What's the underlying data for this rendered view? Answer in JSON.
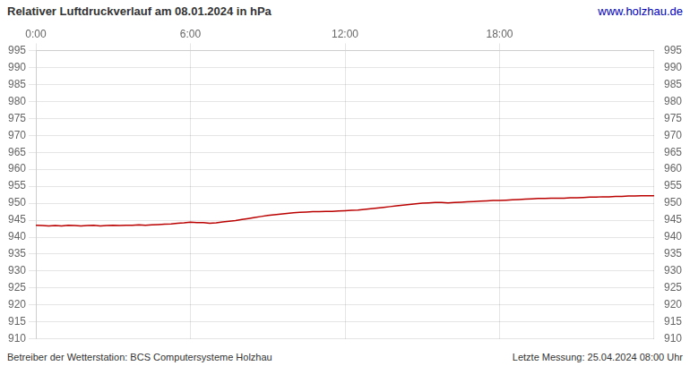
{
  "chart_data": {
    "type": "line",
    "title": "Relativer Luftdruckverlauf am 08.01.2024 in hPa",
    "annotations": [
      "www.holzhau.de",
      "Betreiber der Wetterstation: BCS Computersysteme Holzhau",
      "Letzte Messung: 25.04.2024 08:00 Uhr"
    ],
    "x": [
      0,
      15,
      30,
      45,
      60,
      75,
      90,
      105,
      120,
      135,
      150,
      165,
      180,
      195,
      210,
      225,
      240,
      255,
      270,
      285,
      300,
      315,
      330,
      345,
      360,
      375,
      390,
      405,
      420,
      435,
      450,
      465,
      480,
      495,
      510,
      525,
      540,
      555,
      570,
      585,
      600,
      615,
      630,
      645,
      660,
      675,
      690,
      705,
      720,
      735,
      750,
      765,
      780,
      795,
      810,
      825,
      840,
      855,
      870,
      885,
      900,
      915,
      930,
      945,
      960,
      975,
      990,
      1005,
      1020,
      1035,
      1050,
      1065,
      1080,
      1095,
      1110,
      1125,
      1140,
      1155,
      1170,
      1185,
      1200,
      1215,
      1230,
      1245,
      1260,
      1275,
      1290,
      1305,
      1320,
      1335,
      1350,
      1365,
      1380,
      1395,
      1410,
      1425,
      1440
    ],
    "values": [
      943.5,
      943.4,
      943.3,
      943.4,
      943.3,
      943.5,
      943.4,
      943.3,
      943.4,
      943.5,
      943.3,
      943.4,
      943.5,
      943.4,
      943.5,
      943.5,
      943.6,
      943.5,
      943.6,
      943.7,
      943.8,
      943.9,
      944.1,
      944.2,
      944.4,
      944.3,
      944.3,
      944.1,
      944.2,
      944.5,
      944.7,
      944.9,
      945.2,
      945.5,
      945.8,
      946.1,
      946.4,
      946.6,
      946.8,
      947.0,
      947.2,
      947.3,
      947.4,
      947.5,
      947.5,
      947.6,
      947.6,
      947.7,
      947.8,
      947.9,
      948.0,
      948.2,
      948.4,
      948.6,
      948.8,
      949.0,
      949.2,
      949.4,
      949.6,
      949.8,
      950.0,
      950.1,
      950.2,
      950.2,
      950.1,
      950.2,
      950.3,
      950.4,
      950.5,
      950.6,
      950.7,
      950.8,
      950.8,
      950.9,
      951.0,
      951.1,
      951.2,
      951.3,
      951.4,
      951.4,
      951.5,
      951.5,
      951.5,
      951.6,
      951.6,
      951.7,
      951.8,
      951.8,
      951.9,
      951.9,
      952.0,
      952.0,
      952.1,
      952.1,
      952.2,
      952.2,
      952.2
    ],
    "color": "#bb0000",
    "xlim": [
      0,
      1440
    ],
    "xticks": [
      {
        "value": 0,
        "label": "0:00"
      },
      {
        "value": 360,
        "label": "6:00"
      },
      {
        "value": 720,
        "label": "12:00"
      },
      {
        "value": 1080,
        "label": "18:00"
      }
    ],
    "ylim": [
      910,
      995
    ],
    "yticks": [
      910,
      915,
      920,
      925,
      930,
      935,
      940,
      945,
      950,
      955,
      960,
      965,
      970,
      975,
      980,
      985,
      990,
      995
    ],
    "grid": true
  }
}
